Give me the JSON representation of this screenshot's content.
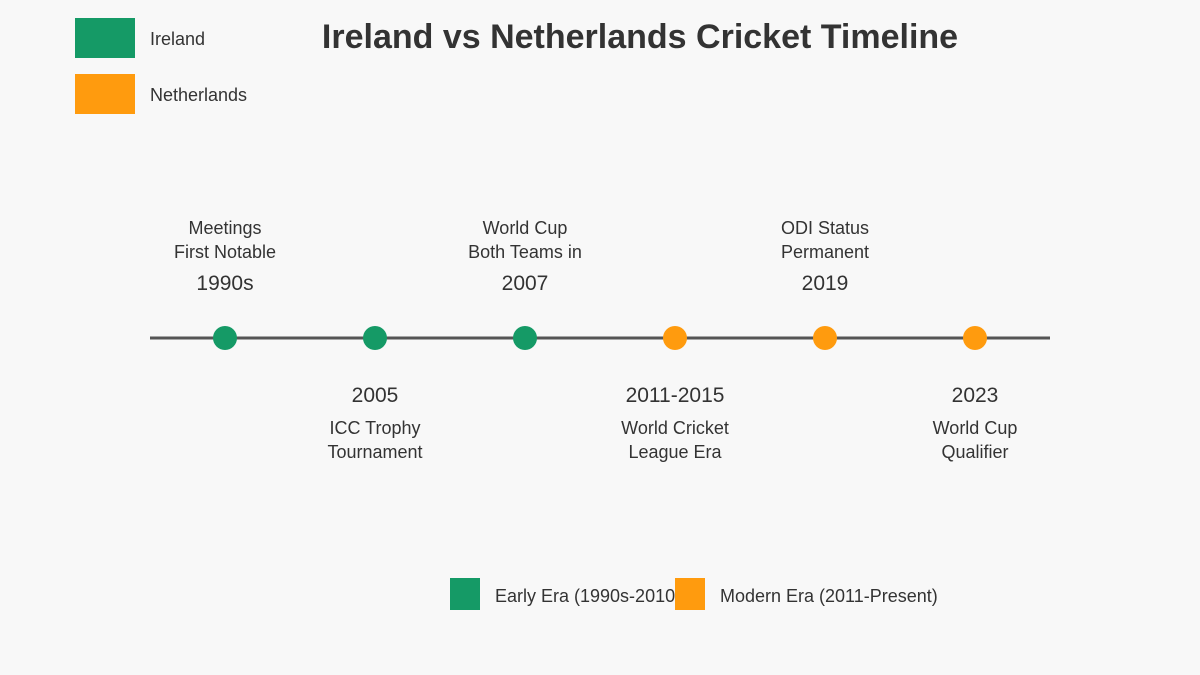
{
  "title": "Ireland vs Netherlands Cricket Timeline",
  "legend_top": [
    {
      "label": "Ireland",
      "color": "#159a66"
    },
    {
      "label": "Netherlands",
      "color": "#ff9b0e"
    }
  ],
  "events": [
    {
      "year": "1990s",
      "lines": [
        "Meetings",
        "First Notable"
      ],
      "position": "above",
      "era": "early"
    },
    {
      "year": "2005",
      "lines": [
        "ICC Trophy",
        "Tournament"
      ],
      "position": "below",
      "era": "early"
    },
    {
      "year": "2007",
      "lines": [
        "World Cup",
        "Both Teams in"
      ],
      "position": "above",
      "era": "early"
    },
    {
      "year": "2011-2015",
      "lines": [
        "World Cricket",
        "League Era"
      ],
      "position": "below",
      "era": "modern"
    },
    {
      "year": "2019",
      "lines": [
        "ODI Status",
        "Permanent"
      ],
      "position": "above",
      "era": "modern"
    },
    {
      "year": "2023",
      "lines": [
        "World Cup",
        "Qualifier"
      ],
      "position": "below",
      "era": "modern"
    }
  ],
  "legend_bottom": [
    {
      "label": "Early Era (1990s-2010",
      "color": "#159a66",
      "era": "early"
    },
    {
      "label": "Modern Era (2011-Present)",
      "color": "#ff9b0e",
      "era": "modern"
    }
  ],
  "colors": {
    "early": "#159a66",
    "modern": "#ff9b0e",
    "axis": "#555555",
    "text": "#333333",
    "background": "#f8f8f8"
  }
}
